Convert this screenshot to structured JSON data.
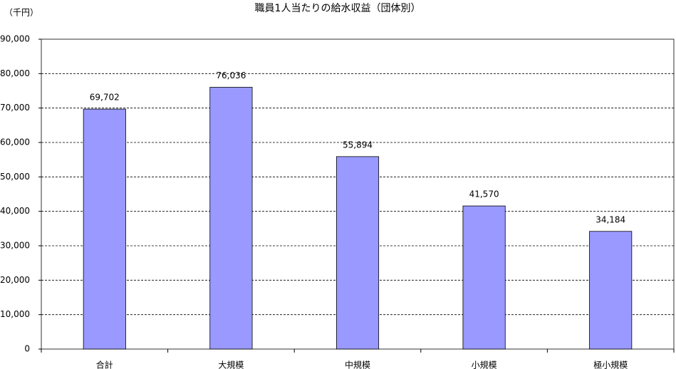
{
  "chart_data": {
    "type": "bar",
    "title": "職員1人当たりの給水収益（団体別）",
    "y_unit_label": "（千円）",
    "categories": [
      "合計",
      "大規模",
      "中規模",
      "小規模",
      "極小規模"
    ],
    "values": [
      69702,
      76036,
      55894,
      41570,
      34184
    ],
    "value_labels": [
      "69,702",
      "76,036",
      "55,894",
      "41,570",
      "34,184"
    ],
    "color": "#9999ff",
    "ylim": [
      0,
      90000
    ],
    "yticks": [
      0,
      {
        "value": 10000,
        "label": "10,000"
      },
      {
        "value": 20000,
        "label": "20,000"
      },
      {
        "value": 30000,
        "label": "30,000"
      },
      {
        "value": 40000,
        "label": "40,000"
      },
      {
        "value": 50000,
        "label": "50,000"
      },
      {
        "value": 60000,
        "label": "60,000"
      },
      {
        "value": 70000,
        "label": "70,000"
      },
      {
        "value": 80000,
        "label": "80,000"
      },
      {
        "value": 90000,
        "label": "90,000"
      }
    ],
    "grid": true
  }
}
